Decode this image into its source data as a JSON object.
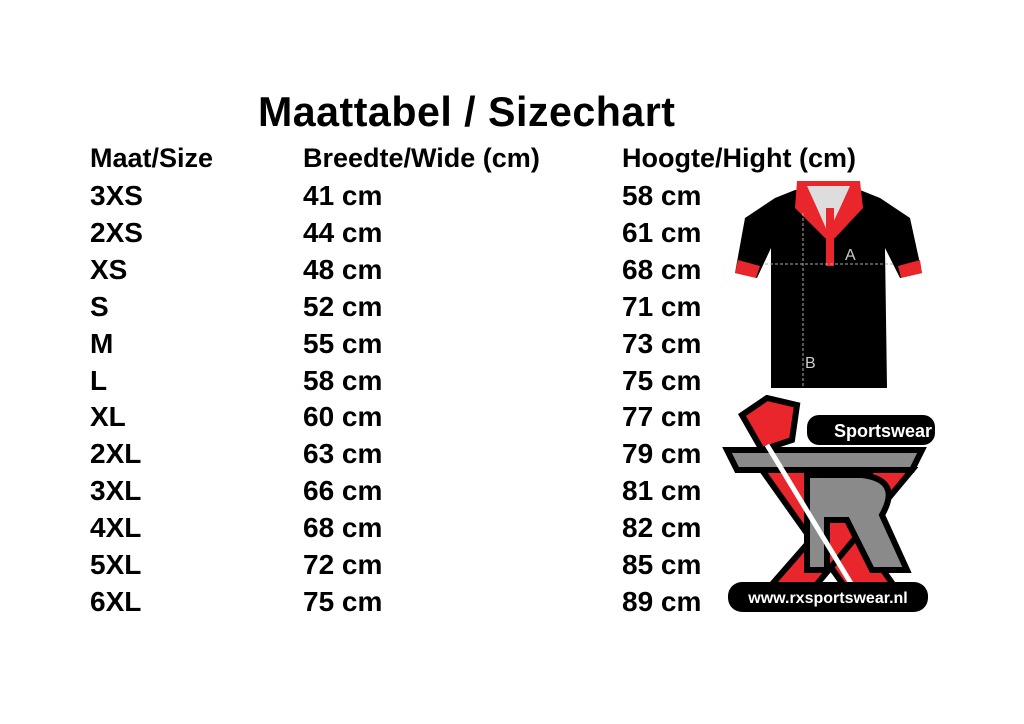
{
  "title": "Maattabel / Sizechart",
  "headers": [
    "Maat/Size",
    "Breedte/Wide (cm)",
    "Hoogte/Hight (cm)"
  ],
  "rows": [
    [
      "3XS",
      "41 cm",
      "58 cm"
    ],
    [
      "2XS",
      "44 cm",
      "61 cm"
    ],
    [
      "XS",
      "48 cm",
      "68 cm"
    ],
    [
      "S",
      "52 cm",
      "71 cm"
    ],
    [
      "M",
      "55 cm",
      "73 cm"
    ],
    [
      "L",
      "58 cm",
      "75 cm"
    ],
    [
      "XL",
      "60 cm",
      "77 cm"
    ],
    [
      "2XL",
      "63 cm",
      "79 cm"
    ],
    [
      "3XL",
      "66 cm",
      "81 cm"
    ],
    [
      "4XL",
      "68 cm",
      "82 cm"
    ],
    [
      "5XL",
      "72 cm",
      "85 cm"
    ],
    [
      "6XL",
      "75 cm",
      "89 cm"
    ]
  ],
  "shirt": {
    "label_a": "A",
    "label_b": "B"
  },
  "logo": {
    "brand": "Sportswear",
    "url": "www.rxsportswear.nl"
  },
  "colors": {
    "accent": "#e8262b",
    "grey": "#8a8a8a",
    "black": "#000000"
  }
}
